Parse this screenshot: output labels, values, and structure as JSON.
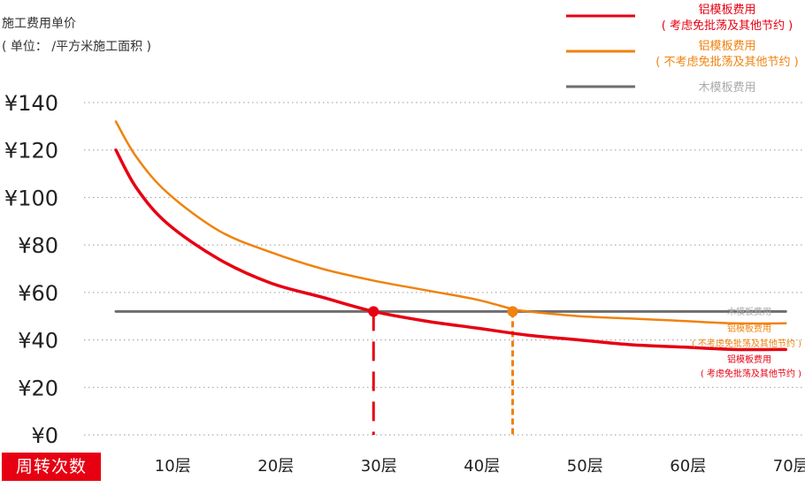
{
  "header": {
    "title_line1": "施工费用单价",
    "title_line2": "( 单位： /平方米施工面积 )"
  },
  "x_axis_badge": "周转次数",
  "legend": [
    {
      "line1": "铝模板费用",
      "line2": "( 考虑免批荡及其他节约 )",
      "color": "#e60012"
    },
    {
      "line1": "铝模板费用",
      "line2": "( 不考虑免批荡及其他节约 )",
      "color": "#f0820f"
    },
    {
      "line1": "木模板费用",
      "line2": "",
      "color": "#6e6e6e"
    }
  ],
  "colors": {
    "red": "#e60012",
    "orange": "#f0820f",
    "gray": "#6e6e6e",
    "grid": "#9a9a9a",
    "tick_text": "#222222",
    "wood_label": "#aaaaaa"
  },
  "chart_data": {
    "type": "line",
    "x_tick_labels": [
      "10层",
      "20层",
      "30层",
      "40层",
      "50层",
      "60层",
      "70层"
    ],
    "x_ticks": [
      10,
      20,
      30,
      40,
      50,
      60,
      70
    ],
    "y_tick_labels": [
      "¥0",
      "¥20",
      "¥40",
      "¥60",
      "¥80",
      "¥100",
      "¥120",
      "¥140"
    ],
    "y_ticks": [
      0,
      20,
      40,
      60,
      80,
      100,
      120,
      140
    ],
    "ylim": [
      0,
      145
    ],
    "xlim": [
      3,
      74
    ],
    "grid": "horizontal dotted",
    "series": [
      {
        "name": "铝模板费用 ( 考虑免批荡及其他节约 )",
        "end_label_line1": "铝模板费用",
        "end_label_line2": "( 考虑免批荡及其他节约 )",
        "color": "#e60012",
        "x": [
          5,
          7,
          10,
          15,
          20,
          25,
          30,
          35,
          40,
          45,
          50,
          55,
          60,
          65,
          70
        ],
        "y": [
          120,
          104,
          89,
          74,
          64,
          58,
          52,
          48,
          45,
          42,
          40,
          38,
          37,
          36,
          36
        ]
      },
      {
        "name": "铝模板费用 ( 不考虑免批荡及其他节约 )",
        "end_label_line1": "铝模板费用",
        "end_label_line2": "( 不考虑免批荡及其他节约 )",
        "color": "#f0820f",
        "x": [
          5,
          7,
          10,
          15,
          20,
          25,
          30,
          35,
          40,
          43.5,
          45,
          50,
          55,
          60,
          65,
          70
        ],
        "y": [
          132,
          117,
          102,
          86,
          77,
          70,
          65,
          61,
          57,
          53,
          52,
          50,
          49,
          48,
          47,
          47
        ]
      },
      {
        "name": "木模板费用",
        "end_label_line1": "木模板费用",
        "end_label_line2": "",
        "color": "#6e6e6e",
        "x": [
          5,
          70
        ],
        "y": [
          52,
          52
        ]
      }
    ],
    "intersections": [
      {
        "x": 30,
        "y": 52,
        "color": "#e60012"
      },
      {
        "x": 43.5,
        "y": 52,
        "color": "#f0820f"
      }
    ]
  }
}
